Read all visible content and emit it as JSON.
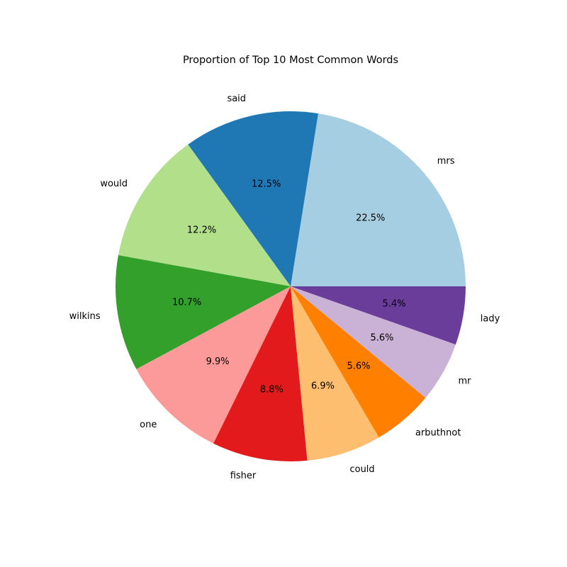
{
  "chart_data": {
    "type": "pie",
    "title": "Proportion of Top 10 Most Common Words",
    "categories": [
      "mrs",
      "said",
      "would",
      "wilkins",
      "one",
      "fisher",
      "could",
      "arbuthnot",
      "mr",
      "lady"
    ],
    "values": [
      22.5,
      12.5,
      12.2,
      10.7,
      9.9,
      8.8,
      6.9,
      5.6,
      5.6,
      5.4
    ],
    "value_labels": [
      "22.5%",
      "12.5%",
      "12.2%",
      "10.7%",
      "9.9%",
      "8.8%",
      "6.9%",
      "5.6%",
      "5.6%",
      "5.4%"
    ],
    "colors": [
      "#a6cee3",
      "#1f78b4",
      "#b2df8a",
      "#33a02c",
      "#fb9a99",
      "#e31a1c",
      "#fdbf6f",
      "#ff7f00",
      "#cab2d6",
      "#6a3d9a"
    ],
    "start_angle_deg": 0,
    "direction": "counterclockwise",
    "legend": "none"
  }
}
